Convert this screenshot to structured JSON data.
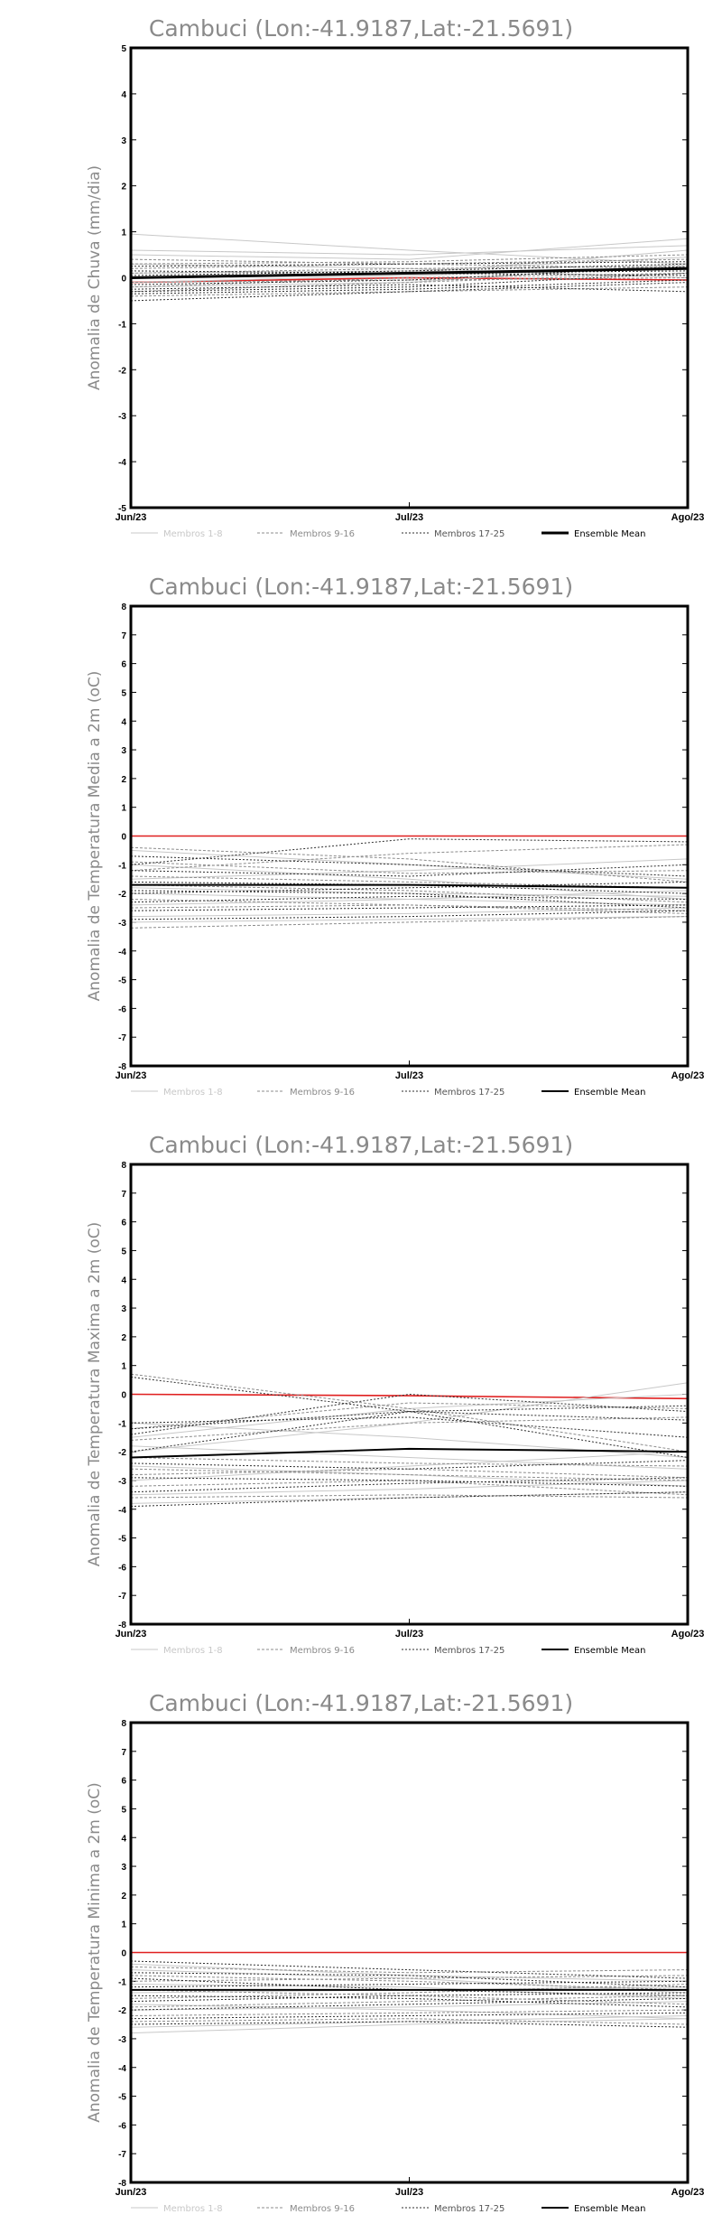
{
  "chart_data": [
    {
      "type": "line",
      "title": "Cambuci (Lon:-41.9187,Lat:-21.5691)",
      "ylabel": "Anomalia de Chuva (mm/dia)",
      "x": [
        "Jun/23",
        "Jul/23",
        "Ago/23"
      ],
      "ylim": [
        -5,
        5
      ],
      "yticks": [
        -5,
        -4,
        -3,
        -2,
        -1,
        0,
        1,
        2,
        3,
        4,
        5
      ],
      "legend": [
        "Membros 1-8",
        "Membros 9-16",
        "Membros 17-25",
        "Ensemble Mean"
      ],
      "members_1_8": [
        [
          0.95,
          0.6,
          0.3
        ],
        [
          0.5,
          0.4,
          0.85
        ],
        [
          0.1,
          0.15,
          0.45
        ],
        [
          -0.1,
          0.05,
          0.2
        ],
        [
          0.3,
          0.2,
          0.0
        ],
        [
          -0.2,
          -0.1,
          0.3
        ],
        [
          0.0,
          0.1,
          0.6
        ],
        [
          0.6,
          0.5,
          0.7
        ]
      ],
      "members_9_16": [
        [
          0.2,
          0.3,
          0.4
        ],
        [
          -0.3,
          -0.1,
          0.1
        ],
        [
          0.4,
          0.3,
          0.2
        ],
        [
          -0.4,
          -0.3,
          -0.2
        ],
        [
          0.1,
          0.2,
          0.25
        ],
        [
          -0.2,
          0.0,
          0.1
        ],
        [
          0.3,
          0.35,
          0.5
        ],
        [
          -0.1,
          -0.05,
          0.0
        ]
      ],
      "members_17_25": [
        [
          -0.3,
          -0.2,
          0.1
        ],
        [
          0.15,
          0.1,
          0.05
        ],
        [
          -0.5,
          -0.3,
          -0.1
        ],
        [
          0.05,
          0.15,
          0.3
        ],
        [
          -0.25,
          -0.15,
          -0.3
        ],
        [
          0.25,
          0.3,
          0.35
        ],
        [
          -0.35,
          -0.25,
          -0.05
        ],
        [
          0.0,
          0.1,
          0.15
        ],
        [
          -0.15,
          -0.05,
          0.25
        ]
      ],
      "ensemble_mean": [
        0.0,
        0.1,
        0.2
      ],
      "reference": [
        -0.1,
        0.0,
        -0.05
      ]
    },
    {
      "type": "line",
      "title": "Cambuci (Lon:-41.9187,Lat:-21.5691)",
      "ylabel": "Anomalia de Temperatura Media a 2m (oC)",
      "x": [
        "Jun/23",
        "Jul/23",
        "Ago/23"
      ],
      "ylim": [
        -8,
        8
      ],
      "yticks": [
        -8,
        -7,
        -6,
        -5,
        -4,
        -3,
        -2,
        -1,
        0,
        1,
        2,
        3,
        4,
        5,
        6,
        7,
        8
      ],
      "legend": [
        "Membros 1-8",
        "Membros 9-16",
        "Membros 17-25",
        "Ensemble Mean"
      ],
      "members_1_8": [
        [
          -0.5,
          -1.0,
          -1.5
        ],
        [
          -1.5,
          -1.2,
          -0.8
        ],
        [
          -2.0,
          -2.2,
          -2.4
        ],
        [
          -2.8,
          -2.7,
          -2.5
        ],
        [
          -1.0,
          -1.5,
          -2.2
        ],
        [
          -3.0,
          -2.9,
          -2.8
        ],
        [
          -1.8,
          -2.0,
          -2.1
        ],
        [
          -2.4,
          -2.2,
          -1.9
        ]
      ],
      "members_9_16": [
        [
          -0.4,
          -0.8,
          -1.6
        ],
        [
          -1.2,
          -0.6,
          -0.3
        ],
        [
          -2.5,
          -2.4,
          -2.6
        ],
        [
          -1.7,
          -1.9,
          -2.3
        ],
        [
          -2.2,
          -2.4,
          -2.7
        ],
        [
          -0.9,
          -1.3,
          -1.2
        ],
        [
          -3.2,
          -3.0,
          -2.8
        ],
        [
          -1.4,
          -1.6,
          -1.8
        ]
      ],
      "members_17_25": [
        [
          -1.0,
          -0.1,
          -0.2
        ],
        [
          -1.6,
          -1.7,
          -2.0
        ],
        [
          -2.6,
          -2.5,
          -2.4
        ],
        [
          -0.7,
          -1.0,
          -1.4
        ],
        [
          -2.0,
          -1.8,
          -1.6
        ],
        [
          -2.9,
          -2.8,
          -2.6
        ],
        [
          -1.2,
          -1.4,
          -1.0
        ],
        [
          -2.3,
          -2.1,
          -2.2
        ],
        [
          -1.9,
          -2.0,
          -2.5
        ]
      ],
      "ensemble_mean": [
        -1.7,
        -1.7,
        -1.8
      ],
      "reference": [
        0.0,
        0.0,
        0.0
      ]
    },
    {
      "type": "line",
      "title": "Cambuci (Lon:-41.9187,Lat:-21.5691)",
      "ylabel": "Anomalia de Temperatura Maxima a 2m (oC)",
      "x": [
        "Jun/23",
        "Jul/23",
        "Ago/23"
      ],
      "ylim": [
        -8,
        8
      ],
      "yticks": [
        -8,
        -7,
        -6,
        -5,
        -4,
        -3,
        -2,
        -1,
        0,
        1,
        2,
        3,
        4,
        5,
        6,
        7,
        8
      ],
      "legend": [
        "Membros 1-8",
        "Membros 9-16",
        "Membros 17-25",
        "Ensemble Mean"
      ],
      "members_1_8": [
        [
          -2.0,
          -1.0,
          0.4
        ],
        [
          -3.0,
          -2.5,
          -2.0
        ],
        [
          -1.0,
          -1.5,
          -2.2
        ],
        [
          -3.5,
          -3.3,
          -3.0
        ],
        [
          -1.5,
          -0.5,
          0.0
        ],
        [
          -2.5,
          -2.8,
          -3.2
        ],
        [
          -3.8,
          -3.6,
          -3.4
        ],
        [
          -1.8,
          -2.2,
          -2.6
        ]
      ],
      "members_9_16": [
        [
          0.7,
          -0.5,
          -2.0
        ],
        [
          -1.2,
          -0.3,
          -0.5
        ],
        [
          -2.8,
          -2.6,
          -2.9
        ],
        [
          -3.2,
          -3.0,
          -3.5
        ],
        [
          -2.2,
          -2.4,
          -2.5
        ],
        [
          -1.6,
          -1.0,
          -0.8
        ],
        [
          -3.6,
          -3.5,
          -3.6
        ],
        [
          -2.6,
          -2.8,
          -3.0
        ]
      ],
      "members_17_25": [
        [
          0.6,
          -0.6,
          -2.2
        ],
        [
          -1.0,
          -0.8,
          -1.5
        ],
        [
          -3.4,
          -3.1,
          -2.9
        ],
        [
          -2.0,
          -0.6,
          -0.4
        ],
        [
          -1.4,
          0.0,
          -0.6
        ],
        [
          -2.9,
          -3.0,
          -3.2
        ],
        [
          -3.9,
          -3.6,
          -3.4
        ],
        [
          -1.2,
          -0.6,
          -0.9
        ],
        [
          -2.4,
          -2.6,
          -2.3
        ]
      ],
      "ensemble_mean": [
        -2.2,
        -1.9,
        -2.0
      ],
      "reference": [
        0.0,
        -0.05,
        -0.15
      ]
    },
    {
      "type": "line",
      "title": "Cambuci (Lon:-41.9187,Lat:-21.5691)",
      "ylabel": "Anomalia de Temperatura Minima a 2m (oC)",
      "x": [
        "Jun/23",
        "Jul/23",
        "Ago/23"
      ],
      "ylim": [
        -8,
        8
      ],
      "yticks": [
        -8,
        -7,
        -6,
        -5,
        -4,
        -3,
        -2,
        -1,
        0,
        1,
        2,
        3,
        4,
        5,
        6,
        7,
        8
      ],
      "legend": [
        "Membros 1-8",
        "Membros 9-16",
        "Membros 17-25",
        "Ensemble Mean"
      ],
      "members_1_8": [
        [
          -0.4,
          -0.8,
          -1.0
        ],
        [
          -1.4,
          -1.3,
          -1.2
        ],
        [
          -2.6,
          -2.4,
          -2.2
        ],
        [
          -0.6,
          -0.9,
          -1.4
        ],
        [
          -2.0,
          -1.9,
          -1.7
        ],
        [
          -2.8,
          -2.5,
          -2.3
        ],
        [
          -1.1,
          -1.2,
          -1.6
        ],
        [
          -1.8,
          -2.0,
          -2.3
        ]
      ],
      "members_9_16": [
        [
          -0.5,
          -0.7,
          -0.6
        ],
        [
          -1.6,
          -1.4,
          -1.1
        ],
        [
          -2.2,
          -2.1,
          -2.0
        ],
        [
          -1.0,
          -0.9,
          -0.8
        ],
        [
          -2.4,
          -2.3,
          -2.5
        ],
        [
          -1.3,
          -1.5,
          -1.8
        ],
        [
          -0.8,
          -1.0,
          -1.3
        ],
        [
          -1.9,
          -1.7,
          -1.5
        ]
      ],
      "members_17_25": [
        [
          -0.3,
          -0.6,
          -0.9
        ],
        [
          -1.2,
          -1.1,
          -1.0
        ],
        [
          -2.0,
          -1.8,
          -1.6
        ],
        [
          -0.9,
          -1.3,
          -1.5
        ],
        [
          -1.5,
          -1.6,
          -1.9
        ],
        [
          -2.3,
          -2.2,
          -2.1
        ],
        [
          -0.7,
          -0.8,
          -1.2
        ],
        [
          -1.7,
          -1.5,
          -1.4
        ],
        [
          -2.5,
          -2.4,
          -2.6
        ]
      ],
      "ensemble_mean": [
        -1.3,
        -1.3,
        -1.3
      ],
      "reference": [
        0.0,
        0.0,
        0.0
      ]
    }
  ],
  "colors": {
    "members_1_8": "#c8c8c8",
    "members_9_16": "#8c8c8c",
    "members_17_25": "#2e2e2e",
    "ensemble_mean": "#000000",
    "reference": "#e02020",
    "title_text": "#8a8a8a"
  }
}
